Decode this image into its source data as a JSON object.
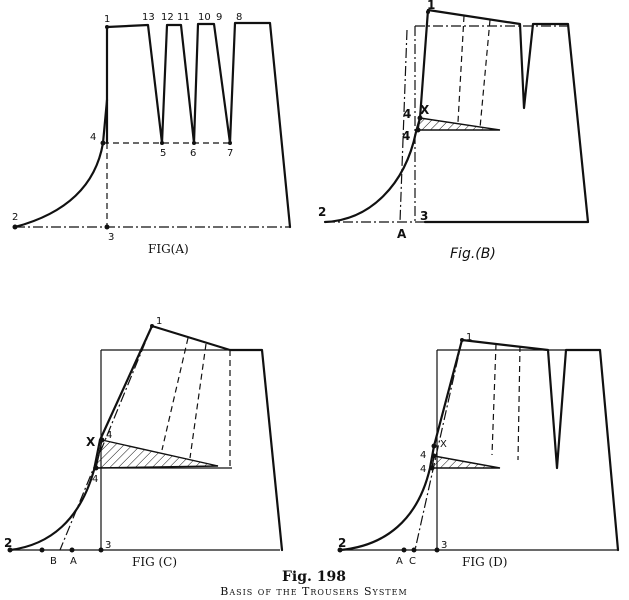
{
  "figure": {
    "number": "Fig. 198",
    "caption": "Basis of the Trousers System"
  },
  "panels": {
    "a": {
      "title": "FIG(A)",
      "points": [
        "1",
        "13",
        "12",
        "11",
        "10",
        "9",
        "8",
        "4",
        "5",
        "6",
        "7",
        "2",
        "3"
      ]
    },
    "b": {
      "title": "Fig.(B)",
      "points": [
        "1",
        "4",
        "X",
        "4",
        "2",
        "3",
        "A"
      ]
    },
    "c": {
      "title": "FIG (C)",
      "points": [
        "1",
        "X",
        "4",
        "4",
        "2",
        "B",
        "A",
        "3"
      ]
    },
    "d": {
      "title": "FIG (D)",
      "points": [
        "1",
        "X",
        "4",
        "4",
        "2",
        "A",
        "C",
        "3"
      ]
    }
  }
}
